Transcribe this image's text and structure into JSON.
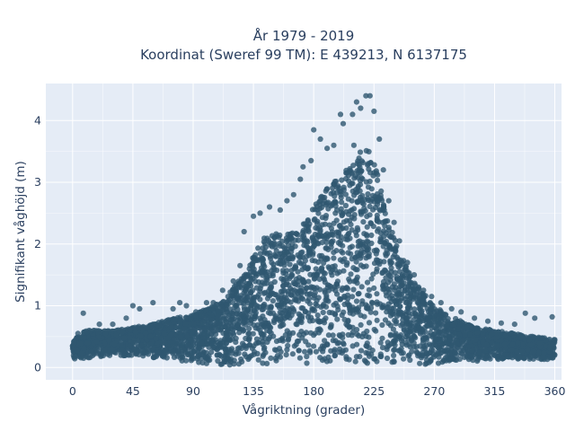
{
  "chart_data": {
    "type": "scatter",
    "title": "År 1979 - 2019",
    "subtitle": "Koordinat (Sweref 99 TM): E 439213, N 6137175",
    "xlabel": "Vågriktning (grader)",
    "ylabel": "Signifikant våghöjd (m)",
    "xlim": [
      -20,
      365
    ],
    "ylim": [
      -0.2,
      4.6
    ],
    "xticks": [
      0,
      45,
      90,
      135,
      180,
      225,
      270,
      315,
      360
    ],
    "yticks": [
      0,
      1,
      2,
      3,
      4
    ],
    "grid": true,
    "legend": "none",
    "marker_color": "#2f5770",
    "plot_bgcolor": "#e5ecf6",
    "envelope": {
      "direction": [
        0,
        10,
        20,
        30,
        45,
        60,
        75,
        90,
        100,
        110,
        120,
        130,
        135,
        140,
        150,
        160,
        170,
        180,
        190,
        200,
        210,
        215,
        220,
        225,
        230,
        235,
        240,
        250,
        260,
        270,
        280,
        290,
        300,
        315,
        330,
        345,
        360
      ],
      "upper_height": [
        0.45,
        0.6,
        0.6,
        0.6,
        0.65,
        0.7,
        0.8,
        0.85,
        0.95,
        1.05,
        1.3,
        1.55,
        1.85,
        2.05,
        2.2,
        2.15,
        2.3,
        2.6,
        2.9,
        3.1,
        3.35,
        3.5,
        3.55,
        3.4,
        2.9,
        2.5,
        2.1,
        1.6,
        1.25,
        1.0,
        0.85,
        0.75,
        0.65,
        0.6,
        0.55,
        0.5,
        0.45
      ],
      "lower_height": [
        0.12,
        0.15,
        0.17,
        0.2,
        0.18,
        0.15,
        0.12,
        0.08,
        0.05,
        0.03,
        0.02,
        0.02,
        0.03,
        0.03,
        0.04,
        0.05,
        0.05,
        0.05,
        0.05,
        0.05,
        0.05,
        0.05,
        0.05,
        0.05,
        0.05,
        0.05,
        0.05,
        0.05,
        0.05,
        0.05,
        0.06,
        0.08,
        0.1,
        0.12,
        0.13,
        0.13,
        0.12
      ]
    },
    "outlier_points": [
      {
        "x": 200,
        "y": 4.1
      },
      {
        "x": 219,
        "y": 4.4
      },
      {
        "x": 222,
        "y": 4.4
      },
      {
        "x": 212,
        "y": 4.3
      },
      {
        "x": 215,
        "y": 4.2
      },
      {
        "x": 209,
        "y": 4.1
      },
      {
        "x": 225,
        "y": 4.15
      },
      {
        "x": 180,
        "y": 3.85
      },
      {
        "x": 185,
        "y": 3.7
      },
      {
        "x": 190,
        "y": 3.55
      },
      {
        "x": 195,
        "y": 3.6
      },
      {
        "x": 202,
        "y": 3.95
      },
      {
        "x": 210,
        "y": 3.6
      },
      {
        "x": 229,
        "y": 3.7
      },
      {
        "x": 178,
        "y": 3.35
      },
      {
        "x": 172,
        "y": 3.25
      },
      {
        "x": 170,
        "y": 3.05
      },
      {
        "x": 165,
        "y": 2.8
      },
      {
        "x": 160,
        "y": 2.7
      },
      {
        "x": 155,
        "y": 2.55
      },
      {
        "x": 147,
        "y": 2.6
      },
      {
        "x": 140,
        "y": 2.5
      },
      {
        "x": 135,
        "y": 2.45
      },
      {
        "x": 128,
        "y": 2.2
      },
      {
        "x": 125,
        "y": 1.65
      },
      {
        "x": 120,
        "y": 1.4
      },
      {
        "x": 116,
        "y": 1.15
      },
      {
        "x": 112,
        "y": 1.25
      },
      {
        "x": 105,
        "y": 1.05
      },
      {
        "x": 100,
        "y": 1.05
      },
      {
        "x": 92,
        "y": 0.9
      },
      {
        "x": 85,
        "y": 1.0
      },
      {
        "x": 80,
        "y": 1.05
      },
      {
        "x": 75,
        "y": 0.95
      },
      {
        "x": 60,
        "y": 1.05
      },
      {
        "x": 50,
        "y": 0.95
      },
      {
        "x": 45,
        "y": 1.0
      },
      {
        "x": 40,
        "y": 0.8
      },
      {
        "x": 30,
        "y": 0.7
      },
      {
        "x": 20,
        "y": 0.7
      },
      {
        "x": 8,
        "y": 0.88
      },
      {
        "x": 4,
        "y": 0.55
      },
      {
        "x": 232,
        "y": 3.2
      },
      {
        "x": 236,
        "y": 2.7
      },
      {
        "x": 240,
        "y": 2.35
      },
      {
        "x": 244,
        "y": 2.05
      },
      {
        "x": 250,
        "y": 1.7
      },
      {
        "x": 255,
        "y": 1.5
      },
      {
        "x": 262,
        "y": 1.25
      },
      {
        "x": 268,
        "y": 1.15
      },
      {
        "x": 275,
        "y": 1.05
      },
      {
        "x": 283,
        "y": 0.95
      },
      {
        "x": 290,
        "y": 0.9
      },
      {
        "x": 300,
        "y": 0.8
      },
      {
        "x": 310,
        "y": 0.75
      },
      {
        "x": 320,
        "y": 0.72
      },
      {
        "x": 330,
        "y": 0.7
      },
      {
        "x": 338,
        "y": 0.88
      },
      {
        "x": 345,
        "y": 0.8
      },
      {
        "x": 358,
        "y": 0.82
      },
      {
        "x": 360,
        "y": 0.45
      },
      {
        "x": 0,
        "y": 0.35
      }
    ]
  }
}
